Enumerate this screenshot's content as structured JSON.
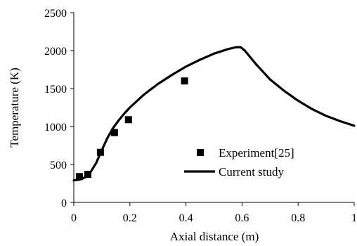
{
  "chart_data": {
    "type": "line",
    "title": "",
    "xlabel": "Axial distance (m)",
    "ylabel": "Temperature (K)",
    "xlim": [
      0,
      1
    ],
    "ylim": [
      0,
      2500
    ],
    "x_ticks": [
      0,
      0.2,
      0.4,
      0.6,
      0.8,
      1
    ],
    "x_tick_labels": [
      "0",
      "0.2",
      "0.4",
      "0.6",
      "0.8",
      "1"
    ],
    "y_ticks": [
      0,
      500,
      1000,
      1500,
      2000,
      2500
    ],
    "y_tick_labels": [
      "0",
      "500",
      "1000",
      "1500",
      "2000",
      "2500"
    ],
    "grid": false,
    "legend_position": "lower-right",
    "series": [
      {
        "name": "Experiment[25]",
        "type": "scatter",
        "marker": "square",
        "color": "#000000",
        "x": [
          0.02,
          0.05,
          0.095,
          0.145,
          0.195,
          0.395
        ],
        "y": [
          340,
          370,
          660,
          920,
          1090,
          1600
        ]
      },
      {
        "name": "Current study",
        "type": "line",
        "color": "#000000",
        "x": [
          0,
          0.02,
          0.04,
          0.06,
          0.08,
          0.1,
          0.12,
          0.14,
          0.16,
          0.18,
          0.2,
          0.25,
          0.3,
          0.35,
          0.4,
          0.45,
          0.5,
          0.55,
          0.58,
          0.595,
          0.61,
          0.65,
          0.7,
          0.75,
          0.8,
          0.85,
          0.9,
          0.95,
          1.0
        ],
        "y": [
          290,
          300,
          330,
          400,
          520,
          690,
          850,
          980,
          1080,
          1170,
          1250,
          1420,
          1560,
          1680,
          1790,
          1880,
          1960,
          2020,
          2045,
          2045,
          2000,
          1820,
          1620,
          1470,
          1340,
          1230,
          1140,
          1070,
          1010
        ]
      }
    ]
  }
}
